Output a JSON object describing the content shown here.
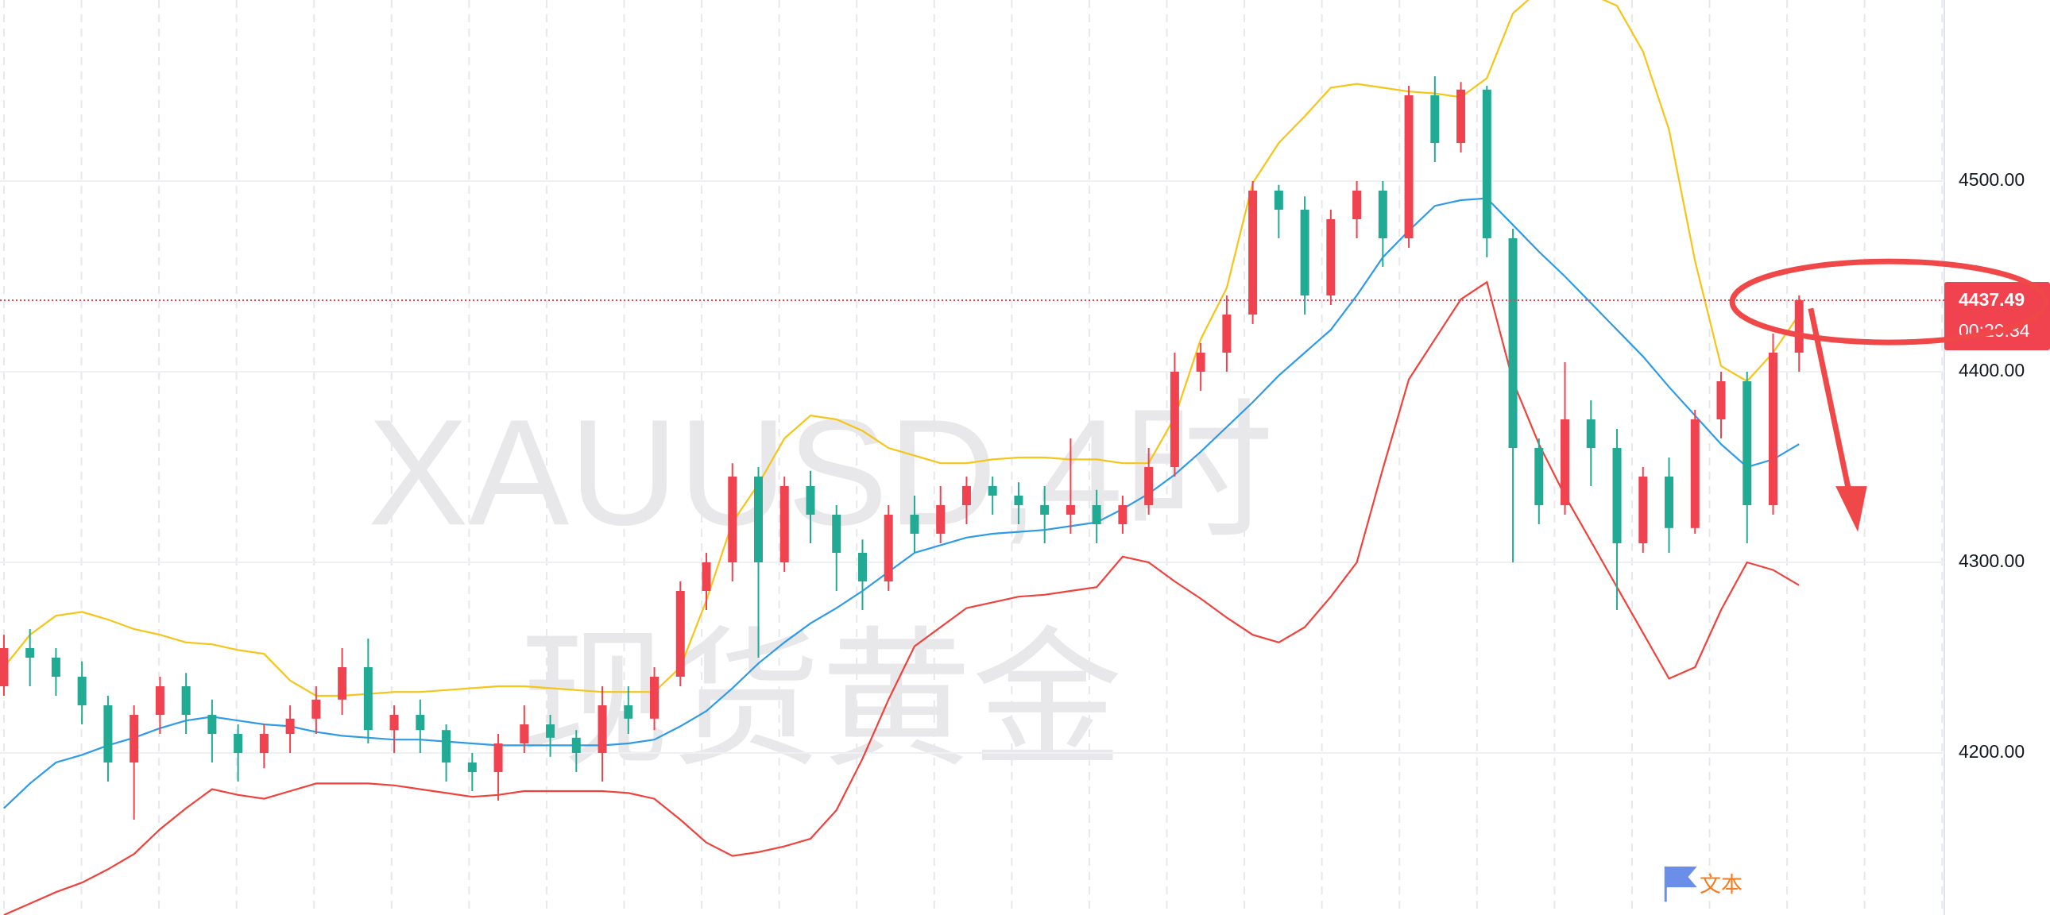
{
  "chart_data": {
    "type": "candlestick",
    "title": "XAUUSD,4时",
    "subtitle": "现货黄金",
    "open": [
      4235,
      4255,
      4250,
      4240,
      4225,
      4195,
      4220,
      4235,
      4220,
      4210,
      4200,
      4210,
      4218,
      4228,
      4245,
      4212,
      4220,
      4212,
      4195,
      4190,
      4205,
      4215,
      4208,
      4200,
      4225,
      4218,
      4240,
      4285,
      4300,
      4345,
      4300,
      4340,
      4325,
      4305,
      4290,
      4325,
      4315,
      4330,
      4340,
      4335,
      4330,
      4325,
      4330,
      4320,
      4330,
      4350,
      4400,
      4410,
      4430,
      4495,
      4485,
      4440,
      4480,
      4495,
      4470,
      4545,
      4520,
      4548,
      4470,
      4360,
      4330,
      4375,
      4360,
      4310,
      4345,
      4318,
      4375,
      4395,
      4330,
      4410
    ],
    "high": [
      4262,
      4265,
      4255,
      4248,
      4230,
      4225,
      4240,
      4242,
      4228,
      4215,
      4215,
      4225,
      4235,
      4255,
      4260,
      4225,
      4228,
      4215,
      4200,
      4210,
      4225,
      4220,
      4212,
      4235,
      4235,
      4245,
      4290,
      4305,
      4352,
      4350,
      4345,
      4348,
      4330,
      4312,
      4330,
      4335,
      4340,
      4345,
      4345,
      4342,
      4340,
      4365,
      4338,
      4335,
      4360,
      4410,
      4415,
      4440,
      4500,
      4498,
      4492,
      4485,
      4500,
      4500,
      4550,
      4555,
      4552,
      4550,
      4475,
      4365,
      4405,
      4385,
      4370,
      4350,
      4355,
      4380,
      4400,
      4400,
      4420,
      4440
    ],
    "low": [
      4230,
      4235,
      4230,
      4215,
      4185,
      4165,
      4210,
      4210,
      4195,
      4185,
      4192,
      4200,
      4210,
      4220,
      4205,
      4200,
      4200,
      4185,
      4180,
      4175,
      4200,
      4198,
      4190,
      4185,
      4210,
      4212,
      4235,
      4275,
      4290,
      4250,
      4295,
      4310,
      4285,
      4275,
      4285,
      4305,
      4310,
      4320,
      4325,
      4320,
      4310,
      4315,
      4310,
      4315,
      4325,
      4345,
      4390,
      4400,
      4425,
      4470,
      4430,
      4435,
      4470,
      4455,
      4465,
      4510,
      4515,
      4460,
      4300,
      4320,
      4325,
      4340,
      4275,
      4305,
      4305,
      4315,
      4365,
      4310,
      4325,
      4400
    ],
    "close": [
      4255,
      4250,
      4240,
      4225,
      4195,
      4220,
      4235,
      4220,
      4210,
      4200,
      4210,
      4218,
      4228,
      4245,
      4212,
      4220,
      4212,
      4195,
      4190,
      4205,
      4215,
      4208,
      4200,
      4225,
      4218,
      4240,
      4285,
      4300,
      4345,
      4300,
      4340,
      4325,
      4305,
      4290,
      4325,
      4315,
      4330,
      4340,
      4335,
      4330,
      4325,
      4330,
      4320,
      4330,
      4350,
      4400,
      4410,
      4430,
      4495,
      4485,
      4440,
      4480,
      4495,
      4470,
      4545,
      4520,
      4548,
      4470,
      4360,
      4330,
      4375,
      4360,
      4310,
      4345,
      4318,
      4375,
      4395,
      4330,
      4410,
      4437.49
    ],
    "up_color": "#f0424f",
    "down_color": "#22ab94",
    "series": [
      {
        "color": "#f5c518",
        "values": [
          4245,
          4262,
          4272,
          4274,
          4270,
          4265,
          4262,
          4258,
          4257,
          4254,
          4252,
          4238,
          4230,
          4230,
          4231,
          4232,
          4232,
          4233,
          4234,
          4235,
          4235,
          4234,
          4233,
          4232,
          4232,
          4232,
          4245,
          4280,
          4321,
          4341,
          4365,
          4377,
          4375,
          4369,
          4360,
          4356,
          4352,
          4352,
          4354,
          4355,
          4355,
          4354,
          4354,
          4352,
          4352,
          4376,
          4417,
          4444,
          4499,
          4520,
          4534,
          4549,
          4551,
          4549,
          4547,
          4546,
          4544,
          4554,
          4588,
          4600,
          4600,
          4598,
          4592,
          4568,
          4527,
          4458,
          4403,
          4395,
          4410,
          4430
        ]
      },
      {
        "color": "#2f9be8",
        "values": [
          4171,
          4184,
          4195,
          4199,
          4204,
          4208,
          4213,
          4217,
          4219,
          4217,
          4215,
          4214,
          4211,
          4209,
          4208,
          4207,
          4207,
          4206,
          4205,
          4204,
          4204,
          4204,
          4204,
          4204,
          4205,
          4207,
          4214,
          4222,
          4234,
          4247,
          4258,
          4268,
          4276,
          4285,
          4295,
          4305,
          4309,
          4313,
          4315,
          4316,
          4317,
          4319,
          4321,
          4328,
          4336,
          4346,
          4358,
          4371,
          4384,
          4398,
          4410,
          4422,
          4440,
          4460,
          4474,
          4487,
          4490,
          4491,
          4477,
          4463,
          4450,
          4436,
          4422,
          4408,
          4392,
          4377,
          4362,
          4350,
          4354,
          4362
        ]
      },
      {
        "color": "#f0423c",
        "values": [
          4115,
          4121,
          4127,
          4132,
          4139,
          4147,
          4160,
          4171,
          4181,
          4178,
          4176,
          4180,
          4184,
          4184,
          4184,
          4183,
          4181,
          4179,
          4177,
          4178,
          4180,
          4180,
          4180,
          4180,
          4179,
          4176,
          4165,
          4153,
          4146,
          4148,
          4151,
          4155,
          4170,
          4197,
          4228,
          4256,
          4266,
          4276,
          4279,
          4282,
          4283,
          4285,
          4287,
          4303,
          4300,
          4290,
          4281,
          4271,
          4262,
          4258,
          4266,
          4282,
          4300,
          4349,
          4396,
          4417,
          4438,
          4447,
          4395,
          4362,
          4335,
          4311,
          4287,
          4263,
          4239,
          4245,
          4275,
          4300,
          4296,
          4288
        ]
      }
    ],
    "ylim": [
      4115,
      4595
    ],
    "yticks": [
      {
        "value": 4200,
        "label": "4200.00"
      },
      {
        "value": 4300,
        "label": "4300.00"
      },
      {
        "value": 4400,
        "label": "4400.00"
      },
      {
        "value": 4500,
        "label": "4500.00"
      }
    ],
    "grid": true,
    "last_price": {
      "value": 4437.49,
      "label": "4437.49"
    },
    "countdown": "00:20:34",
    "annotation": "文本"
  }
}
